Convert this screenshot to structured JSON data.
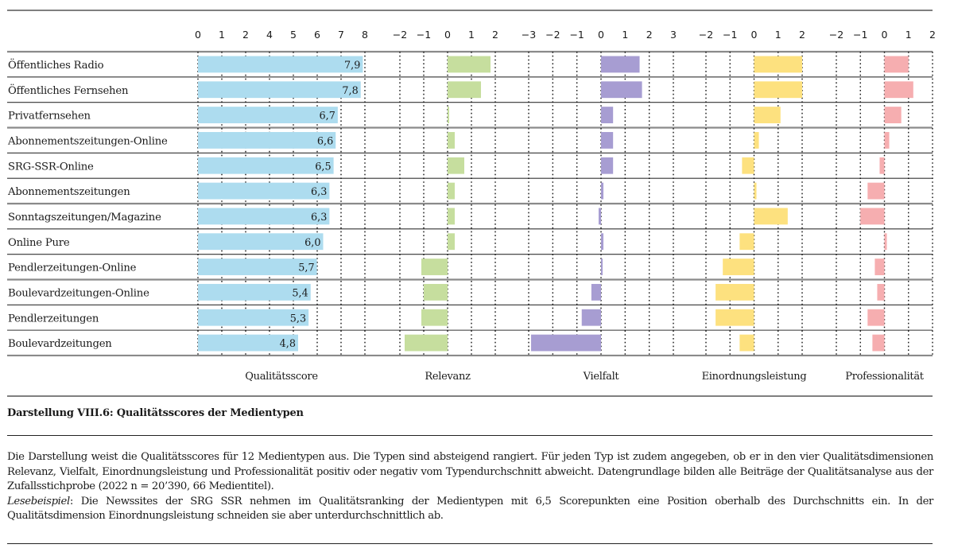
{
  "caption": "Darstellung VIII.6: Qualitätsscores der Medientypen",
  "description": "Die Darstellung weist die Qualitätsscores für 12 Medientypen aus. Die Typen sind absteigend rangiert. Für jeden Typ ist zudem angegeben, ob er in den vier Qualitätsdimensionen Relevanz, Vielfalt, Einordnungsleistung und Professionalität positiv oder negativ vom Typendurchschnitt abweicht. Datengrundlage bilden alle Beiträge der Qualitätsanalyse aus der Zufallsstichprobe (2022 n = 20’390, 66 Medientitel).",
  "reading_example_label": "Lesebeispiel",
  "reading_example_text": ": Die Newssites der SRG SSR nehmen im Qualitätsranking der Medientypen mit 6,5 Scorepunkten eine Position oberhalb des Durchschnitts ein. In der Qualitätsdimension Einordnungsleistung schneiden sie aber unterdurchschnittlich ab.",
  "colors": {
    "score": "#ADDCEF",
    "relevanz": "#C6DE9E",
    "vielfalt": "#A79DD2",
    "einordnung": "#FDE17F",
    "professionalitaet": "#F6AEB0"
  },
  "chart_data": {
    "type": "bar",
    "orientation": "horizontal",
    "title": "Qualitätsscores der Medientypen",
    "categories": [
      "Öffentliches Radio",
      "Öffentliches Fernsehen",
      "Privatfernsehen",
      "Abonnementszeitungen-Online",
      "SRG-SSR-Online",
      "Abonnementszeitungen",
      "Sonntagszeitungen/Magazine",
      "Online Pure",
      "Pendlerzeitungen-Online",
      "Boulevardzeitungen-Online",
      "Pendlerzeitungen",
      "Boulevardzeitungen"
    ],
    "panels": [
      {
        "key": "score",
        "name": "Qualitätsscore",
        "xlim": [
          0,
          8
        ],
        "tick_labels": [
          "0",
          "1",
          "2",
          "4",
          "5",
          "6",
          "7",
          "8"
        ],
        "values": [
          7.9,
          7.8,
          6.7,
          6.6,
          6.5,
          6.3,
          6.3,
          6.0,
          5.7,
          5.4,
          5.3,
          4.8
        ],
        "data_labels": [
          "7,9",
          "7,8",
          "6,7",
          "6,6",
          "6,5",
          "6,3",
          "6,3",
          "6,0",
          "5,7",
          "5,4",
          "5,3",
          "4,8"
        ]
      },
      {
        "key": "relevanz",
        "name": "Relevanz",
        "xlim": [
          -2,
          2
        ],
        "tick_labels": [
          "−2",
          "−1",
          "0",
          "1",
          "2"
        ],
        "values": [
          1.8,
          1.4,
          0.05,
          0.3,
          0.7,
          0.3,
          0.3,
          0.3,
          -1.1,
          -1.0,
          -1.1,
          -1.8
        ]
      },
      {
        "key": "vielfalt",
        "name": "Vielfalt",
        "xlim": [
          -3,
          3
        ],
        "tick_labels": [
          "−3",
          "−2",
          "−1",
          "0",
          "1",
          "2",
          "3"
        ],
        "values": [
          1.6,
          1.7,
          0.5,
          0.5,
          0.5,
          0.1,
          -0.1,
          0.1,
          0.05,
          -0.4,
          -0.8,
          -2.9
        ]
      },
      {
        "key": "einordnung",
        "name": "Einordnungsleistung",
        "xlim": [
          -2,
          2
        ],
        "tick_labels": [
          "−2",
          "−1",
          "0",
          "1",
          "2"
        ],
        "values": [
          2.0,
          2.0,
          1.1,
          0.2,
          -0.5,
          0.1,
          1.4,
          -0.6,
          -1.3,
          -1.6,
          -1.6,
          -0.6
        ]
      },
      {
        "key": "professionalitaet",
        "name": "Professionalität",
        "xlim": [
          -2,
          2
        ],
        "tick_labels": [
          "−2",
          "−1",
          "0",
          "1",
          "2"
        ],
        "values": [
          1.0,
          1.2,
          0.7,
          0.2,
          -0.2,
          -0.7,
          -1.0,
          0.1,
          -0.4,
          -0.3,
          -0.7,
          -0.5
        ]
      }
    ],
    "grid": "dotted vertical at each tick",
    "legend": "none"
  }
}
